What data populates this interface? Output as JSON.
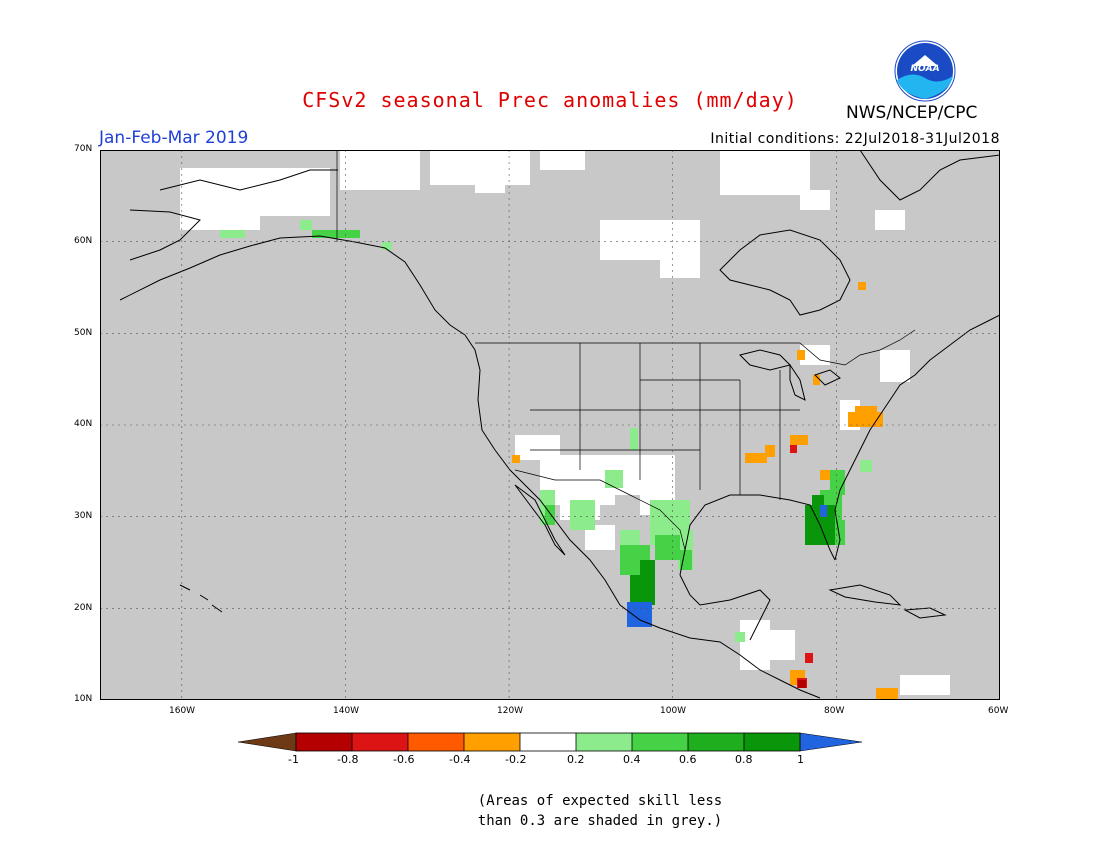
{
  "header": {
    "title": "CFSv2 seasonal Prec anomalies (mm/day)",
    "period": "Jan-Feb-Mar 2019",
    "initial_conditions": "Initial conditions: 22Jul2018-31Jul2018",
    "agency": "NWS/NCEP/CPC",
    "logo_text": "NOAA"
  },
  "map": {
    "lon_range": [
      -170,
      -60
    ],
    "lat_range": [
      10,
      70
    ],
    "lat_labels": [
      "70N",
      "60N",
      "50N",
      "40N",
      "30N",
      "20N",
      "10N"
    ],
    "lon_labels": [
      "160W",
      "140W",
      "120W",
      "100W",
      "80W",
      "60W"
    ],
    "background": "#c8c8c8",
    "grid": "dotted"
  },
  "colorbar": {
    "ticks": [
      "-1",
      "-0.8",
      "-0.6",
      "-0.4",
      "-0.2",
      "0.2",
      "0.4",
      "0.6",
      "0.8",
      "1"
    ],
    "colors": [
      "#6e3a16",
      "#b40000",
      "#dc1414",
      "#ff5a00",
      "#ffa000",
      "#ffffff",
      "#8cec8c",
      "#46d246",
      "#1eae1e",
      "#0a960a",
      "#2064e0"
    ]
  },
  "note": {
    "line1": "(Areas of expected skill less",
    "line2": "than 0.3 are shaded in grey.)"
  }
}
